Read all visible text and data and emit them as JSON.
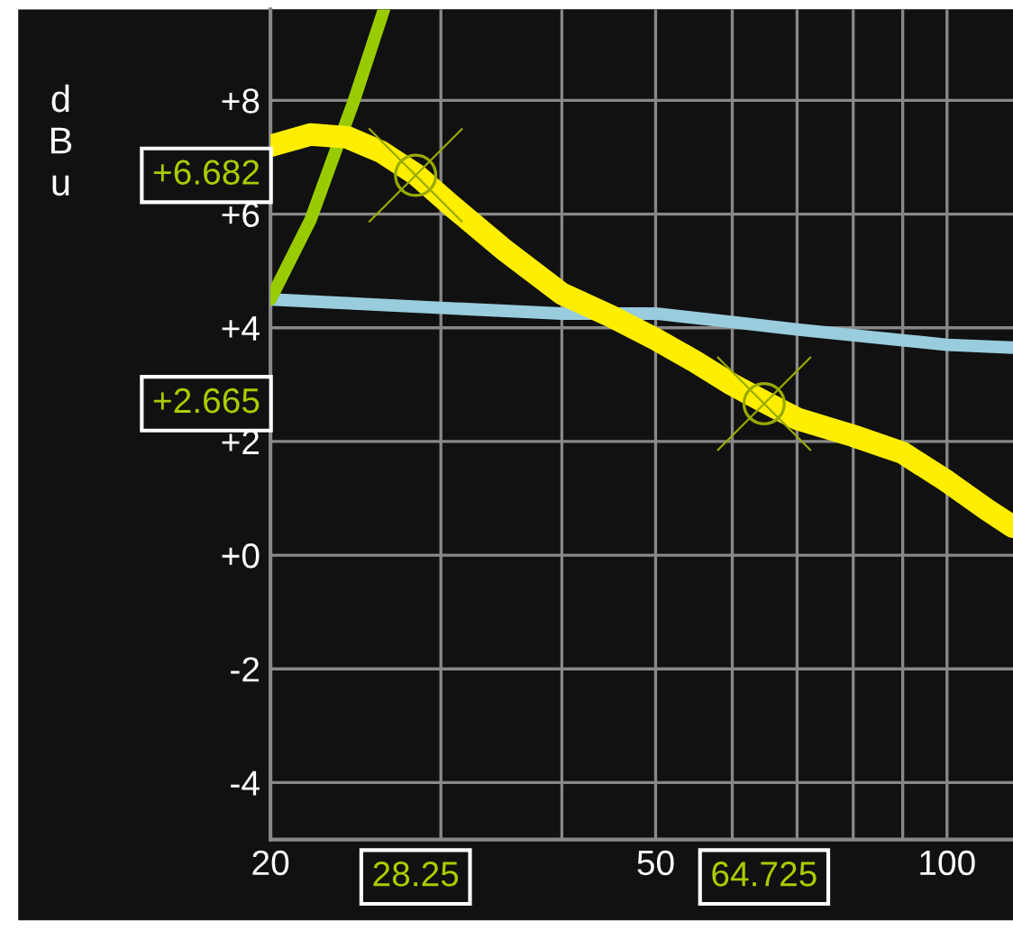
{
  "chart_data": {
    "type": "line",
    "ylabel": "dBu",
    "log": "x",
    "xlim": [
      20,
      117
    ],
    "ylim": [
      -5,
      9.6
    ],
    "xticks": [
      20,
      {
        "value": 30,
        "label": null
      },
      {
        "value": 40,
        "label": null
      },
      50,
      {
        "value": 60,
        "label": null
      },
      {
        "value": 70,
        "label": null
      },
      {
        "value": 80,
        "label": null
      },
      {
        "value": 90,
        "label": null
      },
      100
    ],
    "yticks": [
      {
        "value": -4,
        "label": "-4"
      },
      {
        "value": -2,
        "label": "-2"
      },
      {
        "value": 0,
        "label": "+0"
      },
      {
        "value": 2,
        "label": "+2"
      },
      {
        "value": 4,
        "label": "+4"
      },
      {
        "value": 6,
        "label": "+6"
      },
      {
        "value": 8,
        "label": "+8"
      }
    ],
    "grid": true,
    "series": [
      {
        "color": "#99ccdd",
        "x": [
          20,
          30,
          40,
          50,
          60,
          70,
          90,
          100,
          117
        ],
        "values": [
          4.5,
          4.35,
          4.25,
          4.25,
          4.1,
          3.97,
          3.78,
          3.7,
          3.65
        ]
      },
      {
        "color": "#99cc00",
        "x": [
          20,
          22,
          24.4,
          26.2
        ],
        "values": [
          4.5,
          5.9,
          8.0,
          9.6
        ]
      },
      {
        "color": "#ffee00",
        "x": [
          20,
          22,
          24,
          26,
          28.25,
          31,
          35,
          40,
          45,
          50,
          55,
          60,
          64.725,
          70,
          80,
          90,
          100,
          110,
          117
        ],
        "values": [
          7.2,
          7.4,
          7.35,
          7.1,
          6.7,
          6.1,
          5.35,
          4.6,
          4.2,
          3.8,
          3.4,
          3.0,
          2.7,
          2.4,
          2.1,
          1.8,
          1.3,
          0.8,
          0.5
        ]
      },
      {
        "type": "scatter",
        "marker": "circle",
        "color": "#99aa00",
        "x": [
          28.25,
          64.725
        ],
        "values": [
          6.682,
          2.665
        ]
      }
    ],
    "annotations": [
      "+6.682",
      "+2.665",
      "28.25",
      "64.725"
    ]
  }
}
